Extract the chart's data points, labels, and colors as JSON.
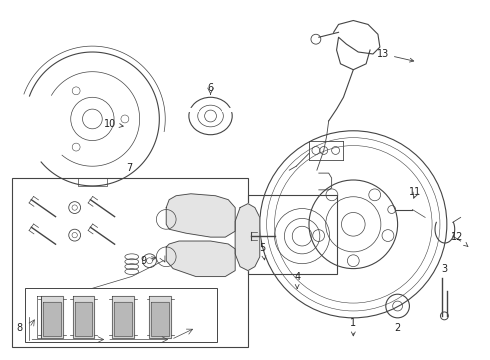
{
  "bg_color": "#ffffff",
  "fig_width": 4.9,
  "fig_height": 3.6,
  "dpi": 100,
  "lc": "#444444",
  "lc2": "#888888",
  "gray_fill": "#cccccc",
  "light_gray": "#e8e8e8"
}
